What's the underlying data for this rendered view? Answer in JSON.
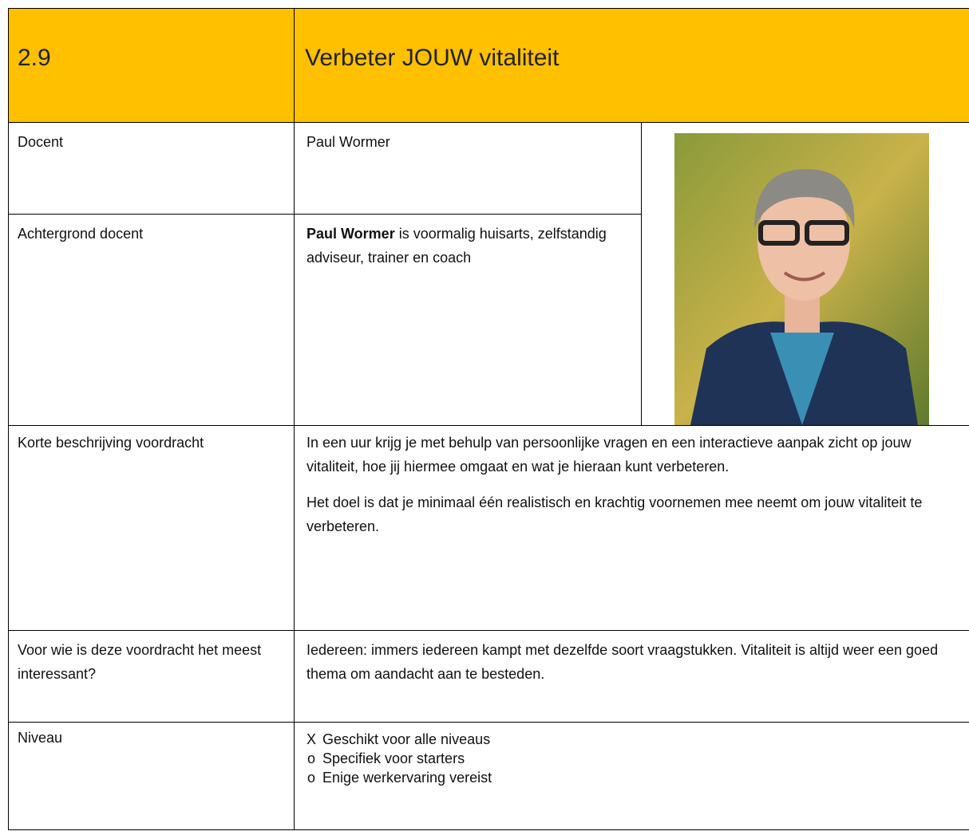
{
  "header": {
    "number": "2.9",
    "title": "Verbeter JOUW vitaliteit"
  },
  "rows": [
    {
      "label": "Docent",
      "text": "Paul Wormer"
    },
    {
      "label": "Achtergrond docent",
      "bold": "Paul Wormer",
      "text": " is voormalig huisarts, zelfstandig adviseur, trainer en coach"
    },
    {
      "label": "Korte beschrijving voordracht",
      "paragraphs": [
        "In een uur krijg je met behulp van persoonlijke vragen en een interactieve aanpak zicht op jouw vitaliteit, hoe jij hiermee omgaat en wat je hieraan kunt verbeteren.",
        "Het doel is dat je minimaal één realistisch en krachtig voornemen mee neemt om jouw vitaliteit te verbeteren."
      ]
    },
    {
      "label": "Voor wie is deze voordracht het meest interessant?",
      "text": "Iedereen: immers iedereen kampt met dezelfde soort vraagstukken. Vitaliteit is altijd weer een goed thema om aandacht aan te besteden."
    },
    {
      "label": "Niveau",
      "items": [
        {
          "marker": "X",
          "text": "Geschikt voor alle niveaus"
        },
        {
          "marker": "o",
          "text": "Specifiek voor starters"
        },
        {
          "marker": "o",
          "text": "Enige werkervaring vereist"
        }
      ]
    }
  ]
}
